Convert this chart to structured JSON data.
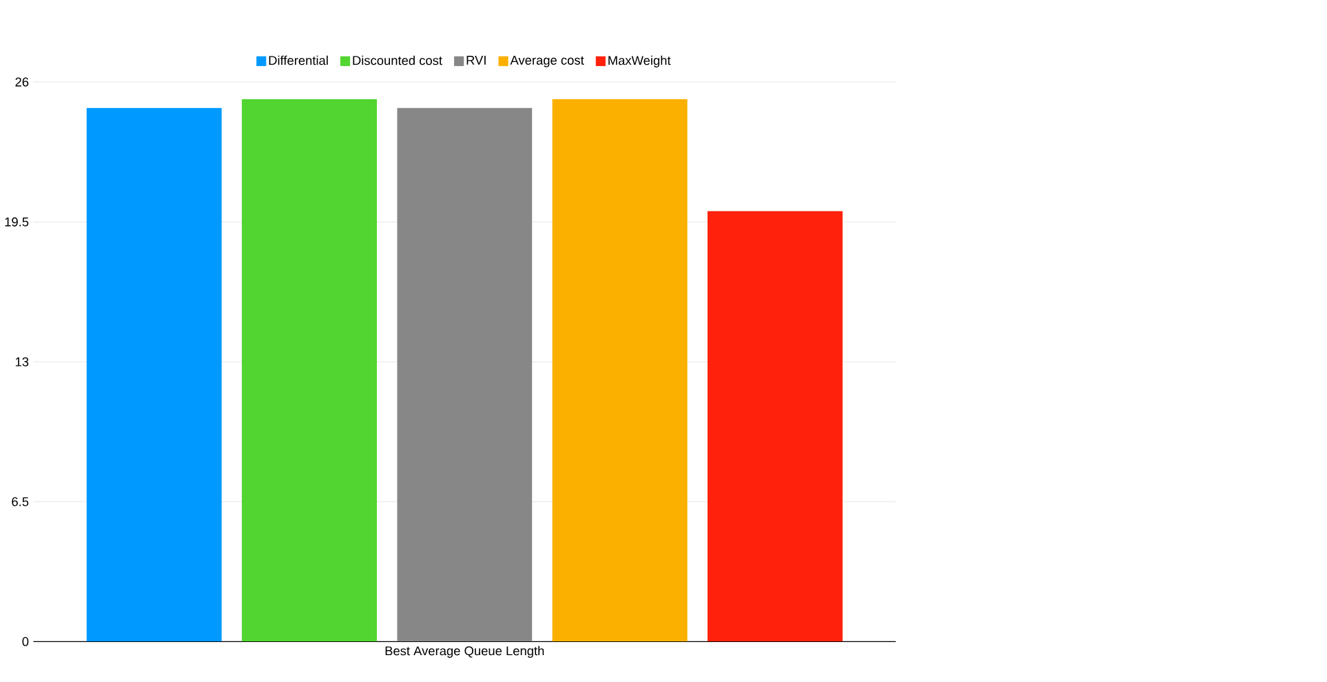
{
  "chart_data": {
    "type": "bar",
    "categories": [
      "Best Average Queue Length"
    ],
    "series": [
      {
        "name": "Differential",
        "color": "#0099ff",
        "values": [
          24.8
        ]
      },
      {
        "name": "Discounted cost",
        "color": "#52d531",
        "values": [
          25.2
        ]
      },
      {
        "name": "RVI",
        "color": "#878787",
        "values": [
          24.8
        ]
      },
      {
        "name": "Average cost",
        "color": "#fbb000",
        "values": [
          25.2
        ]
      },
      {
        "name": "MaxWeight",
        "color": "#ff210b",
        "values": [
          20.0
        ]
      }
    ],
    "ylim": [
      0,
      26
    ],
    "yticks": [
      0,
      6.5,
      13,
      19.5,
      26
    ],
    "grid": "y",
    "legend": "top"
  }
}
